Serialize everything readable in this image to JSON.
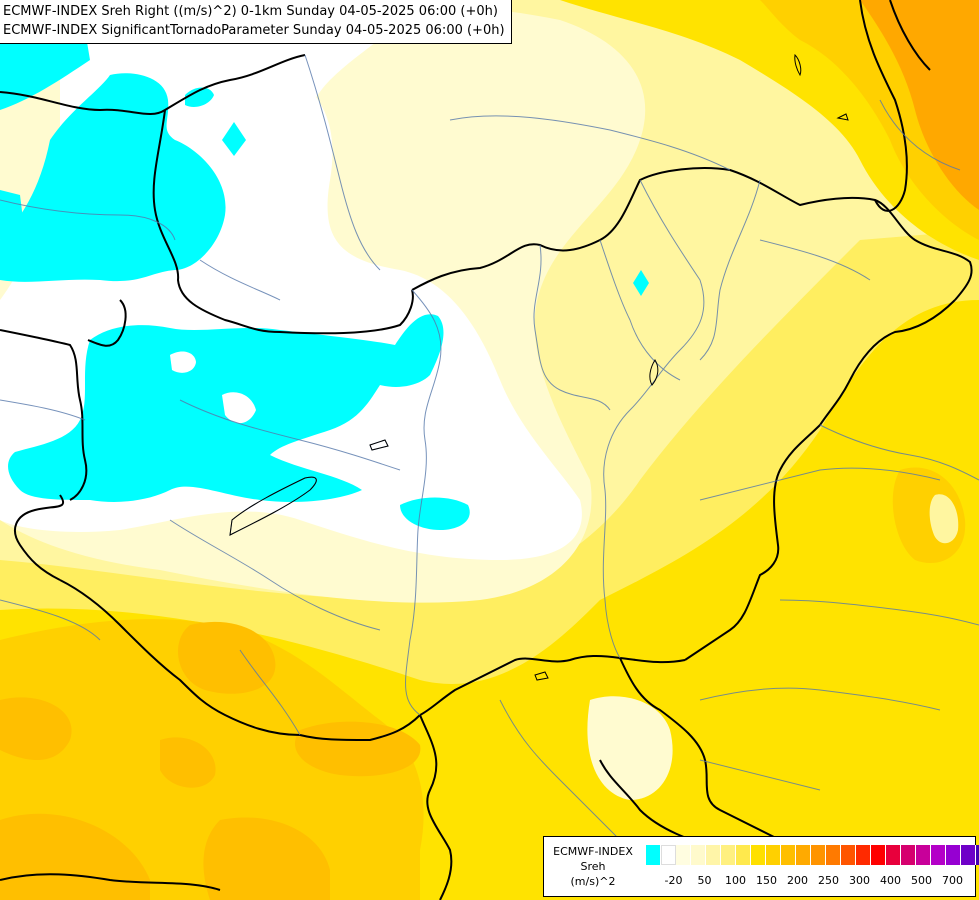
{
  "titles": {
    "line1": "ECMWF-INDEX Sreh Right ((m/s)^2) 0-1km Sunday 04-05-2025 06:00 (+0h)",
    "line2": "ECMWF-INDEX SignificantTornadoParameter Sunday 04-05-2025 06:00 (+0h)"
  },
  "legend": {
    "line1": "ECMWF-INDEX",
    "line2": "Sreh",
    "line3": "(m/s)^2",
    "ticks": [
      "-20",
      "50",
      "100",
      "150",
      "200",
      "250",
      "300",
      "400",
      "500",
      "700"
    ],
    "colors": [
      "#00ffff",
      "#ffffff",
      "#fffde0",
      "#fffacc",
      "#fff5a8",
      "#fff080",
      "#ffe94d",
      "#ffe000",
      "#ffd000",
      "#ffbf00",
      "#ffaa00",
      "#ff9400",
      "#ff7a00",
      "#ff5500",
      "#ff2a00",
      "#ff0000",
      "#e8003c",
      "#d6006e",
      "#c8009a",
      "#b400c8",
      "#9600d2",
      "#6e00c8",
      "#4600b4",
      "#1e0096",
      "#000080"
    ]
  },
  "map_colors": {
    "cyan": "#00ffff",
    "white": "#ffffff",
    "pale": "#fffbd0",
    "light_yellow": "#fff6a0",
    "yellow": "#ffee60",
    "gold": "#ffe300",
    "amber": "#ffd000",
    "orange": "#ffbf00",
    "dark_orange": "#ffa800"
  }
}
